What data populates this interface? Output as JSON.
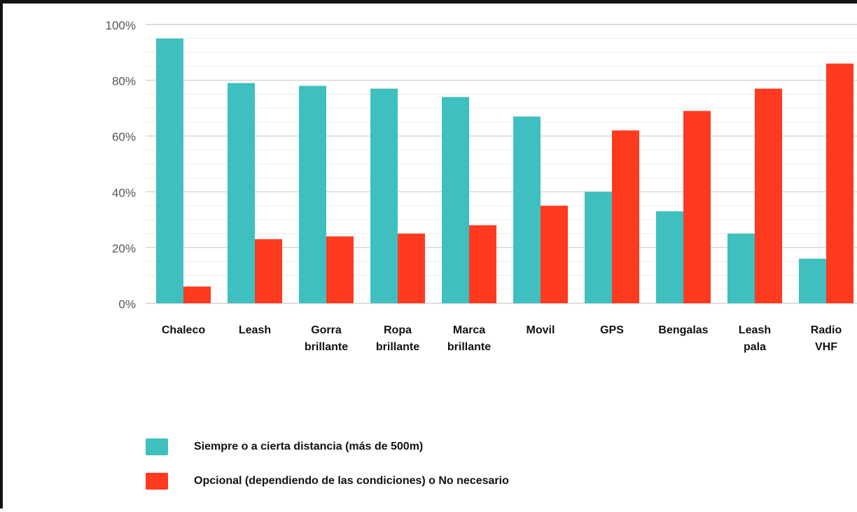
{
  "chart_data": {
    "type": "bar",
    "title": "",
    "xlabel": "",
    "ylabel": "",
    "ylim": [
      0,
      100
    ],
    "y_ticks": [
      "0%",
      "20%",
      "40%",
      "60%",
      "80%",
      "100%"
    ],
    "y_tick_values": [
      0,
      20,
      40,
      60,
      80,
      100
    ],
    "grid": true,
    "legend_position": "bottom-left",
    "categories": [
      "Chaleco",
      "Leash",
      "Gorra\nbrillante",
      "Ropa\nbrillante",
      "Marca\nbrillante",
      "Movil",
      "GPS",
      "Bengalas",
      "Leash\npala",
      "Radio\nVHF"
    ],
    "series": [
      {
        "name": "Siempre o a cierta distancia (más de 500m)",
        "color": "#3fbfbf",
        "values": [
          95,
          79,
          78,
          77,
          74,
          67,
          40,
          33,
          25,
          16
        ]
      },
      {
        "name": "Opcional (dependiendo de las condiciones) o No necesario",
        "color": "#ff3a1f",
        "values": [
          6,
          23,
          24,
          25,
          28,
          35,
          62,
          69,
          77,
          86
        ]
      }
    ]
  }
}
